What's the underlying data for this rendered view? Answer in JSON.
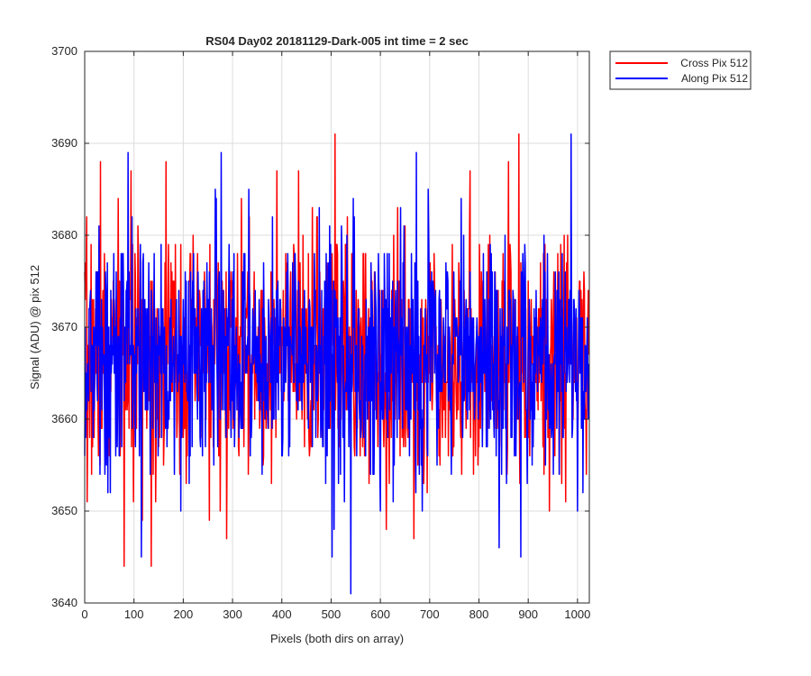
{
  "chart_data": {
    "type": "line",
    "title": "RS04 Day02 20181129-Dark-005 int time = 2 sec",
    "xlabel": "Pixels (both dirs on array)",
    "ylabel": "Signal (ADU) @ pix 512",
    "xlim": [
      0,
      1024
    ],
    "ylim": [
      3640,
      3700
    ],
    "xticks": [
      0,
      100,
      200,
      300,
      400,
      500,
      600,
      700,
      800,
      900,
      1000
    ],
    "yticks": [
      3640,
      3650,
      3660,
      3670,
      3680,
      3690,
      3700
    ],
    "grid": true,
    "legend_position": "outside-top-right",
    "noise_model": {
      "n_points": 1024,
      "mean": 3667,
      "std": 6.5,
      "min": 3641,
      "max": 3691
    },
    "series": [
      {
        "name": "Cross Pix 512",
        "color": "#ff0000",
        "seed": 7,
        "highlights": [
          {
            "x": 5,
            "y": 3651
          },
          {
            "x": 32,
            "y": 3688
          },
          {
            "x": 80,
            "y": 3644
          },
          {
            "x": 135,
            "y": 3644
          },
          {
            "x": 165,
            "y": 3688
          },
          {
            "x": 288,
            "y": 3647
          },
          {
            "x": 508,
            "y": 3691
          },
          {
            "x": 612,
            "y": 3648
          },
          {
            "x": 860,
            "y": 3688
          },
          {
            "x": 881,
            "y": 3691
          },
          {
            "x": 1018,
            "y": 3654
          }
        ]
      },
      {
        "name": "Along Pix 512",
        "color": "#0000ff",
        "seed": 13,
        "highlights": [
          {
            "x": 88,
            "y": 3689
          },
          {
            "x": 115,
            "y": 3645
          },
          {
            "x": 265,
            "y": 3685
          },
          {
            "x": 502,
            "y": 3645
          },
          {
            "x": 540,
            "y": 3641
          },
          {
            "x": 673,
            "y": 3689
          },
          {
            "x": 885,
            "y": 3645
          },
          {
            "x": 987,
            "y": 3691
          },
          {
            "x": 1000,
            "y": 3650
          }
        ]
      }
    ]
  }
}
